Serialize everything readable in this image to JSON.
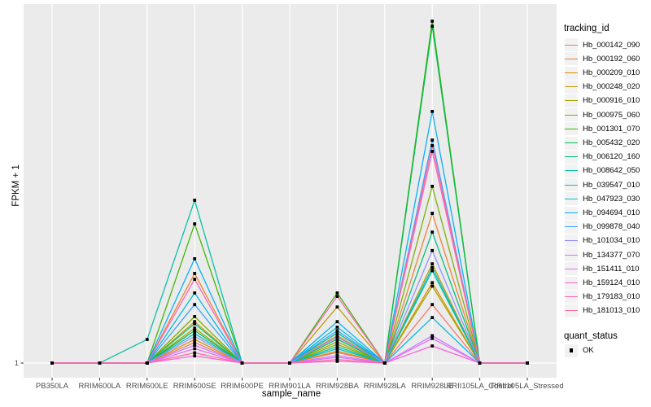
{
  "chart_data": {
    "type": "line",
    "title": "",
    "xlabel": "sample_name",
    "ylabel": "FPKM + 1",
    "y_ticks": [
      "1"
    ],
    "y_axis_note": "Only the baseline value 1 (FPKM + 1) is labeled; series values below are estimated relative heights above that baseline (0 = FPKM+1 of 1, 1 = tallest peak at RRIM928LE).",
    "grid": "white major gridlines on gray panel",
    "legend_position": "right",
    "legend_title": "tracking_id",
    "quant_legend": {
      "title": "quant_status",
      "entries": [
        "OK"
      ]
    },
    "point_color": "#000000",
    "point_shape": "small filled square",
    "panel_bg": "#EBEBEB",
    "grid_color": "#FFFFFF",
    "legend_key_bg": "#F2F2F2",
    "tick_color": "#333333",
    "tick_text_color": "#4D4D4D",
    "categories": [
      "PB350LA",
      "RRIM600LA",
      "RRIM600LE",
      "RRIM600SE",
      "RRIM600PE",
      "RRIM901LA",
      "RRIM928BA",
      "RRIM928LA",
      "RRIM928LE",
      "RRII105LA_Control",
      "RRII105LA_Stressed"
    ],
    "series": [
      {
        "name": "Hb_000142_090",
        "color": "#F8766D",
        "values": [
          0,
          0,
          0,
          0.06,
          0,
          0,
          0.031,
          0,
          0.171,
          0,
          0
        ]
      },
      {
        "name": "Hb_000192_060",
        "color": "#EA8331",
        "values": [
          0,
          0,
          0,
          0.262,
          0,
          0,
          0.08,
          0,
          0.438,
          0,
          0
        ]
      },
      {
        "name": "Hb_000209_010",
        "color": "#D89000",
        "values": [
          0,
          0,
          0,
          0.069,
          0,
          0,
          0.035,
          0,
          0.235,
          0,
          0
        ]
      },
      {
        "name": "Hb_000248_020",
        "color": "#C09B00",
        "values": [
          0,
          0,
          0,
          0.121,
          0,
          0,
          0.164,
          0,
          0.29,
          0,
          0
        ]
      },
      {
        "name": "Hb_000916_010",
        "color": "#A3A500",
        "values": [
          0,
          0,
          0,
          0.102,
          0,
          0,
          0.062,
          0,
          0.225,
          0,
          0
        ]
      },
      {
        "name": "Hb_000975_060",
        "color": "#7CAE00",
        "values": [
          0,
          0,
          0,
          0.136,
          0,
          0,
          0.055,
          0,
          0.517,
          0,
          0
        ]
      },
      {
        "name": "Hb_001301_070",
        "color": "#39B600",
        "values": [
          0,
          0,
          0,
          0.407,
          0,
          0,
          0.205,
          0,
          1.0,
          0,
          0
        ]
      },
      {
        "name": "Hb_005432_020",
        "color": "#00BB4E",
        "values": [
          0,
          0,
          0,
          0.095,
          0,
          0,
          0.07,
          0,
          0.985,
          0,
          0
        ]
      },
      {
        "name": "Hb_006120_160",
        "color": "#00BF7D",
        "values": [
          0,
          0,
          0,
          0.115,
          0,
          0,
          0.088,
          0,
          0.383,
          0,
          0
        ]
      },
      {
        "name": "Hb_008642_050",
        "color": "#00C1A3",
        "values": [
          0,
          0,
          0.069,
          0.476,
          0,
          0,
          0.048,
          0,
          0.27,
          0,
          0
        ]
      },
      {
        "name": "Hb_039547_010",
        "color": "#00BFC4",
        "values": [
          0,
          0,
          0,
          0.086,
          0,
          0,
          0.042,
          0,
          0.279,
          0,
          0
        ]
      },
      {
        "name": "Hb_047923_030",
        "color": "#00BAE0",
        "values": [
          0,
          0,
          0,
          0.205,
          0,
          0,
          0.105,
          0,
          0.133,
          0,
          0
        ]
      },
      {
        "name": "Hb_094694_010",
        "color": "#00B0F6",
        "values": [
          0,
          0,
          0,
          0.305,
          0,
          0,
          0.121,
          0,
          0.736,
          0,
          0
        ]
      },
      {
        "name": "Hb_099878_040",
        "color": "#35A2FF",
        "values": [
          0,
          0,
          0,
          0.171,
          0,
          0,
          0.095,
          0,
          0.652,
          0,
          0
        ]
      },
      {
        "name": "Hb_101034_010",
        "color": "#9590FF",
        "values": [
          0,
          0,
          0,
          0.078,
          0,
          0,
          0.076,
          0,
          0.329,
          0,
          0
        ]
      },
      {
        "name": "Hb_134377_070",
        "color": "#C77CFF",
        "values": [
          0,
          0,
          0,
          0.052,
          0,
          0,
          0.022,
          0,
          0.08,
          0,
          0
        ]
      },
      {
        "name": "Hb_151411_010",
        "color": "#E76BF3",
        "values": [
          0,
          0,
          0,
          0.042,
          0,
          0,
          0.017,
          0,
          0.072,
          0,
          0
        ]
      },
      {
        "name": "Hb_159124_010",
        "color": "#FA62DB",
        "values": [
          0,
          0,
          0,
          0.021,
          0,
          0,
          0.005,
          0,
          0.05,
          0,
          0
        ]
      },
      {
        "name": "Hb_179183_010",
        "color": "#FF62BC",
        "values": [
          0,
          0,
          0,
          0.245,
          0,
          0,
          0.195,
          0,
          0.619,
          0,
          0
        ]
      },
      {
        "name": "Hb_181013_010",
        "color": "#FF6A98",
        "values": [
          0,
          0,
          0,
          0.03,
          0,
          0,
          0.01,
          0,
          0.636,
          0,
          0
        ]
      }
    ]
  }
}
